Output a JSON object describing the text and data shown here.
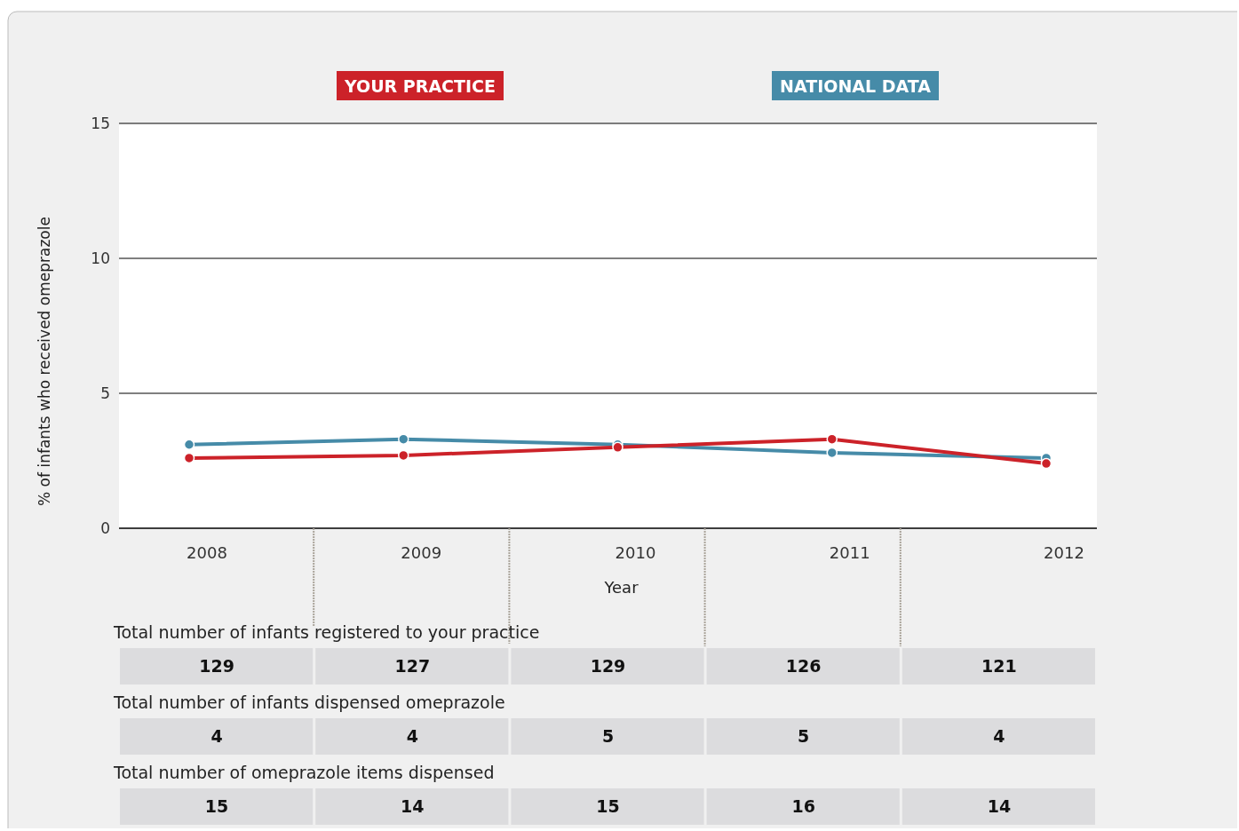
{
  "chart_data": {
    "type": "line",
    "xlabel": "Year",
    "ylabel": "% of infants who received  omeprazole",
    "categories": [
      "2008",
      "2009",
      "2010",
      "2011",
      "2012"
    ],
    "series": [
      {
        "name": "NATIONAL DATA",
        "color": "#468ba8",
        "values": [
          3.1,
          3.3,
          3.1,
          2.8,
          2.6
        ]
      },
      {
        "name": "YOUR PRACTICE",
        "color": "#cc2229",
        "values": [
          2.6,
          2.7,
          3.0,
          3.3,
          2.4
        ]
      }
    ],
    "ylim": [
      0,
      15
    ],
    "yticks": [
      0,
      5,
      10,
      15
    ],
    "grid": "y",
    "legend": "top",
    "marker": "circle",
    "line_style": "solid",
    "annotations": [
      "Total number of infants registered to your practice",
      "129",
      "127",
      "129",
      "126",
      "121",
      "Total number of infants dispensed omeprazole",
      "4",
      "4",
      "5",
      "5",
      "4",
      "Total number of omeprazole items dispensed",
      "15",
      "14",
      "15",
      "16",
      "14"
    ]
  }
}
